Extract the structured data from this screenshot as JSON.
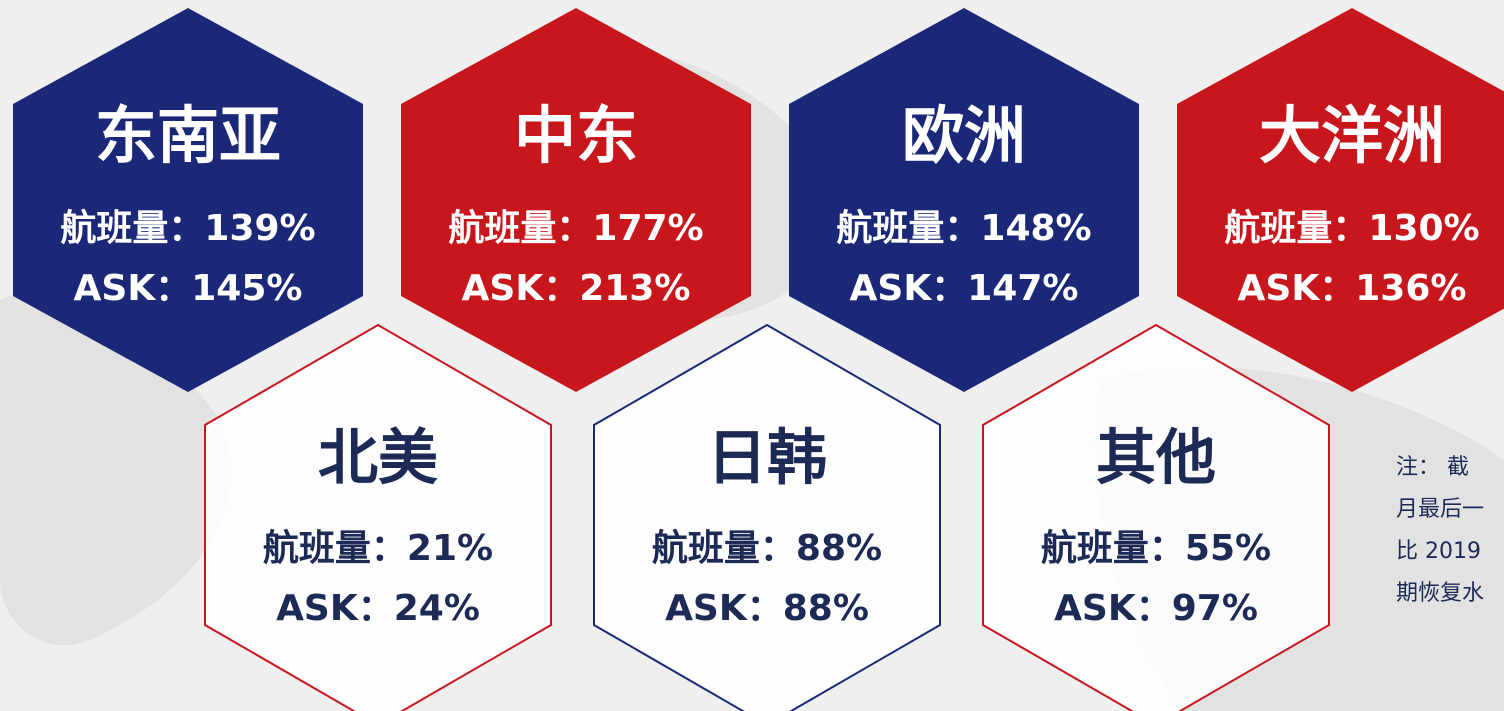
{
  "regions_top": [
    {
      "name": "东南亚",
      "flights": "航班量：139%",
      "ask": "ASK：145%",
      "color": "#1b2878"
    },
    {
      "name": "中东",
      "flights": "航班量：177%",
      "ask": "ASK：213%",
      "color": "#c8161d"
    },
    {
      "name": "欧洲",
      "flights": "航班量：148%",
      "ask": "ASK：147%",
      "color": "#1b2878"
    },
    {
      "name": "大洋洲",
      "flights": "航班量：130%",
      "ask": "ASK：136%",
      "color": "#c8161d"
    }
  ],
  "regions_bottom": [
    {
      "name": "北美",
      "flights": "航班量：21%",
      "ask": "ASK：24%",
      "color": "#c8161d"
    },
    {
      "name": "日韩",
      "flights": "航班量：88%",
      "ask": "ASK：88%",
      "color": "#1b2878"
    },
    {
      "name": "其他",
      "flights": "航班量：55%",
      "ask": "ASK：97%",
      "color": "#c8161d"
    }
  ],
  "note": [
    "注： 截",
    "月最后一",
    "比 2019",
    "期恢复水"
  ]
}
